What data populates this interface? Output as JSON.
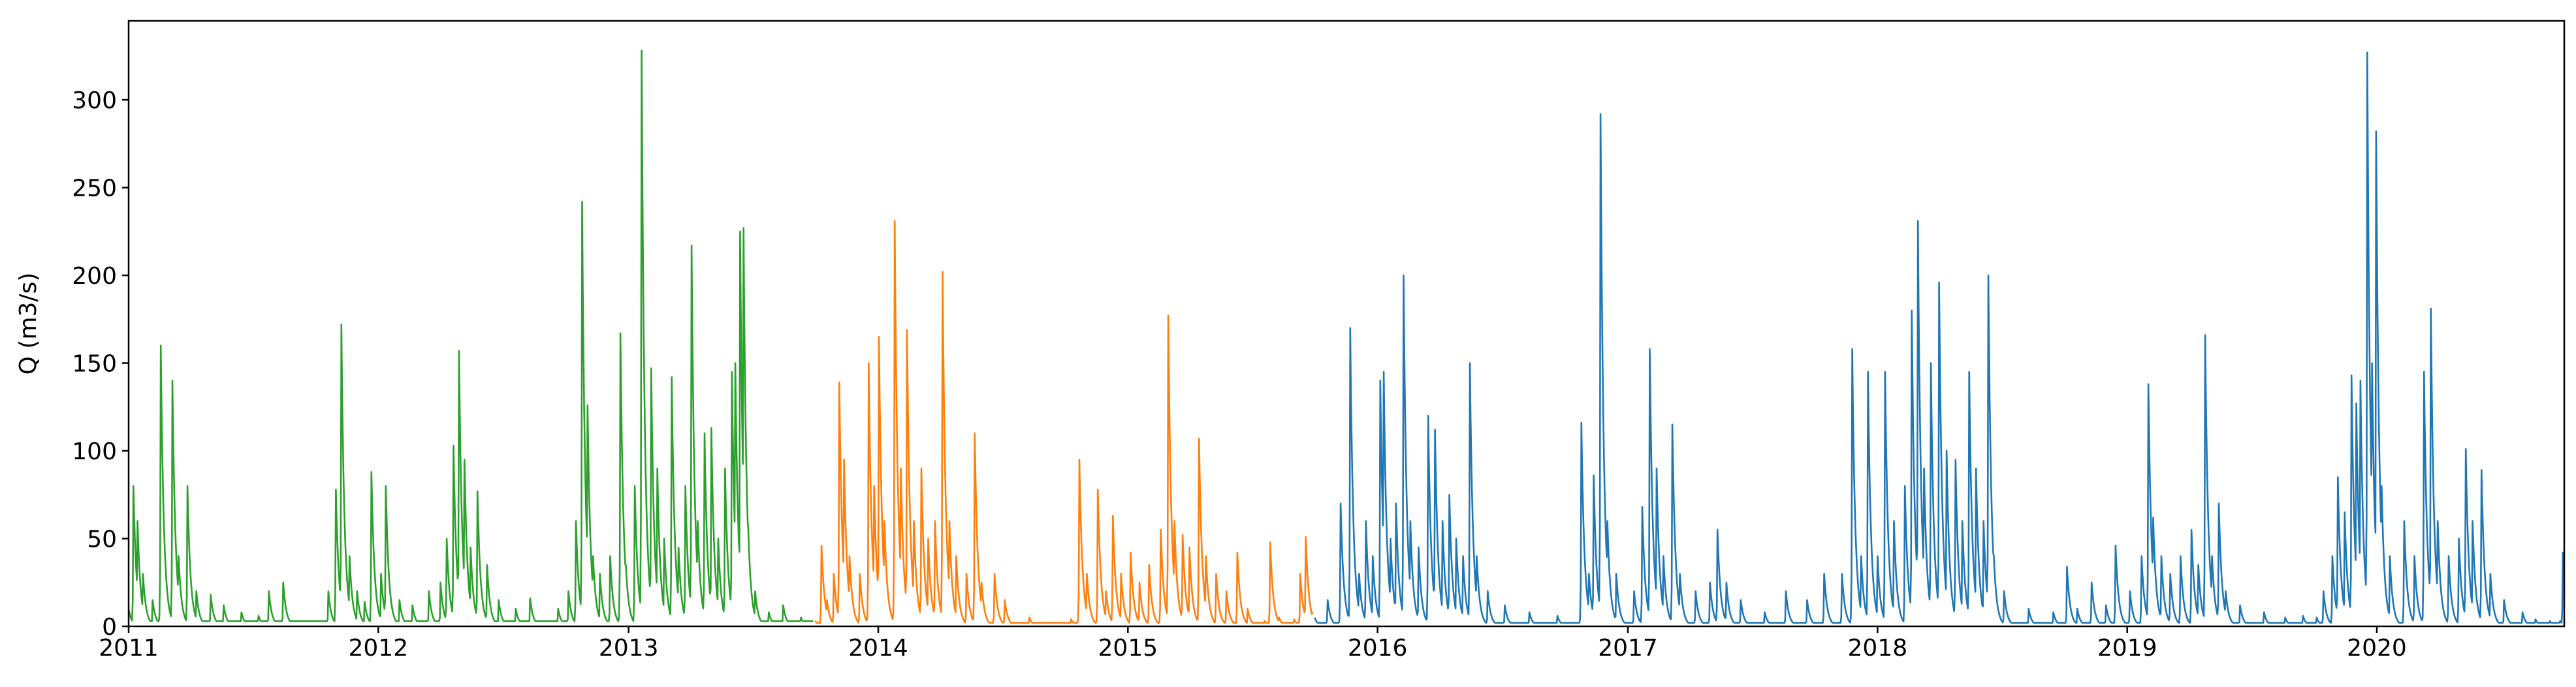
{
  "chart_data": {
    "type": "line",
    "title": "",
    "xlabel": "",
    "ylabel": "Q (m3/s)",
    "xlim": [
      "2011-01-01",
      "2020-10-01"
    ],
    "ylim": [
      0,
      345
    ],
    "x_ticks": [
      "2011",
      "2012",
      "2013",
      "2014",
      "2015",
      "2016",
      "2017",
      "2018",
      "2019",
      "2020"
    ],
    "y_ticks": [
      0,
      50,
      100,
      150,
      200,
      250,
      300
    ],
    "grid": false,
    "legend": "none",
    "series": [
      {
        "color": "#2ca02c",
        "baseflow": 3,
        "points": [
          [
            "2011-01-01",
            10
          ],
          [
            "2011-01-08",
            80
          ],
          [
            "2011-01-14",
            60
          ],
          [
            "2011-01-22",
            30
          ],
          [
            "2011-02-05",
            15
          ],
          [
            "2011-02-17",
            160
          ],
          [
            "2011-02-25",
            25
          ],
          [
            "2011-03-06",
            140
          ],
          [
            "2011-03-15",
            40
          ],
          [
            "2011-03-28",
            80
          ],
          [
            "2011-04-10",
            20
          ],
          [
            "2011-05-01",
            18
          ],
          [
            "2011-05-20",
            12
          ],
          [
            "2011-06-15",
            8
          ],
          [
            "2011-07-10",
            6
          ],
          [
            "2011-07-25",
            20
          ],
          [
            "2011-08-15",
            25
          ],
          [
            "2011-10-20",
            20
          ],
          [
            "2011-10-31",
            78
          ],
          [
            "2011-11-08",
            172
          ],
          [
            "2011-11-20",
            40
          ],
          [
            "2011-12-01",
            20
          ],
          [
            "2011-12-12",
            14
          ],
          [
            "2011-12-22",
            88
          ],
          [
            "2012-01-05",
            30
          ],
          [
            "2012-01-12",
            80
          ],
          [
            "2012-02-01",
            15
          ],
          [
            "2012-02-20",
            12
          ],
          [
            "2012-03-15",
            20
          ],
          [
            "2012-04-01",
            25
          ],
          [
            "2012-04-10",
            50
          ],
          [
            "2012-04-20",
            103
          ],
          [
            "2012-04-28",
            157
          ],
          [
            "2012-05-06",
            95
          ],
          [
            "2012-05-15",
            45
          ],
          [
            "2012-05-25",
            77
          ],
          [
            "2012-06-08",
            35
          ],
          [
            "2012-06-25",
            15
          ],
          [
            "2012-07-20",
            10
          ],
          [
            "2012-08-10",
            16
          ],
          [
            "2012-09-20",
            10
          ],
          [
            "2012-10-05",
            20
          ],
          [
            "2012-10-16",
            60
          ],
          [
            "2012-10-25",
            242
          ],
          [
            "2012-11-02",
            126
          ],
          [
            "2012-11-10",
            40
          ],
          [
            "2012-11-20",
            30
          ],
          [
            "2012-12-05",
            40
          ],
          [
            "2012-12-20",
            167
          ],
          [
            "2012-12-28",
            35
          ],
          [
            "2013-01-10",
            80
          ],
          [
            "2013-01-20",
            328
          ],
          [
            "2013-01-25",
            80
          ],
          [
            "2013-02-03",
            147
          ],
          [
            "2013-02-12",
            90
          ],
          [
            "2013-02-22",
            50
          ],
          [
            "2013-03-05",
            142
          ],
          [
            "2013-03-15",
            45
          ],
          [
            "2013-03-25",
            80
          ],
          [
            "2013-04-03",
            217
          ],
          [
            "2013-04-12",
            60
          ],
          [
            "2013-04-22",
            110
          ],
          [
            "2013-05-02",
            113
          ],
          [
            "2013-05-12",
            50
          ],
          [
            "2013-05-22",
            90
          ],
          [
            "2013-06-01",
            145
          ],
          [
            "2013-06-06",
            150
          ],
          [
            "2013-06-13",
            225
          ],
          [
            "2013-06-18",
            227
          ],
          [
            "2013-06-25",
            55
          ],
          [
            "2013-07-05",
            20
          ],
          [
            "2013-07-25",
            8
          ],
          [
            "2013-08-15",
            12
          ],
          [
            "2013-09-10",
            5
          ],
          [
            "2013-09-28",
            3
          ]
        ]
      },
      {
        "color": "#ff7f0e",
        "baseflow": 2,
        "points": [
          [
            "2013-10-01",
            3
          ],
          [
            "2013-10-10",
            46
          ],
          [
            "2013-10-18",
            15
          ],
          [
            "2013-10-28",
            30
          ],
          [
            "2013-11-05",
            139
          ],
          [
            "2013-11-12",
            95
          ],
          [
            "2013-11-20",
            40
          ],
          [
            "2013-12-05",
            30
          ],
          [
            "2013-12-18",
            150
          ],
          [
            "2013-12-26",
            80
          ],
          [
            "2014-01-02",
            165
          ],
          [
            "2014-01-10",
            60
          ],
          [
            "2014-01-25",
            231
          ],
          [
            "2014-02-03",
            90
          ],
          [
            "2014-02-12",
            169
          ],
          [
            "2014-02-22",
            60
          ],
          [
            "2014-03-05",
            90
          ],
          [
            "2014-03-15",
            50
          ],
          [
            "2014-03-25",
            60
          ],
          [
            "2014-04-05",
            202
          ],
          [
            "2014-04-15",
            60
          ],
          [
            "2014-04-25",
            40
          ],
          [
            "2014-05-10",
            30
          ],
          [
            "2014-05-22",
            110
          ],
          [
            "2014-06-01",
            25
          ],
          [
            "2014-06-20",
            30
          ],
          [
            "2014-07-05",
            15
          ],
          [
            "2014-08-10",
            5
          ],
          [
            "2014-10-10",
            4
          ],
          [
            "2014-10-22",
            95
          ],
          [
            "2014-11-02",
            30
          ],
          [
            "2014-11-18",
            78
          ],
          [
            "2014-11-30",
            20
          ],
          [
            "2014-12-10",
            63
          ],
          [
            "2014-12-22",
            30
          ],
          [
            "2015-01-05",
            42
          ],
          [
            "2015-01-18",
            25
          ],
          [
            "2015-02-01",
            35
          ],
          [
            "2015-02-18",
            55
          ],
          [
            "2015-03-01",
            177
          ],
          [
            "2015-03-10",
            60
          ],
          [
            "2015-03-22",
            52
          ],
          [
            "2015-04-01",
            45
          ],
          [
            "2015-04-15",
            107
          ],
          [
            "2015-04-25",
            40
          ],
          [
            "2015-05-10",
            30
          ],
          [
            "2015-05-25",
            20
          ],
          [
            "2015-06-10",
            42
          ],
          [
            "2015-06-25",
            10
          ],
          [
            "2015-07-20",
            3
          ],
          [
            "2015-07-28",
            48
          ],
          [
            "2015-08-10",
            5
          ],
          [
            "2015-09-01",
            4
          ],
          [
            "2015-09-10",
            30
          ],
          [
            "2015-09-18",
            51
          ],
          [
            "2015-09-28",
            8
          ]
        ]
      },
      {
        "color": "#1f77b4",
        "baseflow": 2,
        "points": [
          [
            "2015-10-01",
            5
          ],
          [
            "2015-10-20",
            15
          ],
          [
            "2015-11-08",
            70
          ],
          [
            "2015-11-22",
            170
          ],
          [
            "2015-12-05",
            30
          ],
          [
            "2015-12-15",
            60
          ],
          [
            "2015-12-25",
            40
          ],
          [
            "2016-01-05",
            140
          ],
          [
            "2016-01-10",
            145
          ],
          [
            "2016-01-20",
            50
          ],
          [
            "2016-01-28",
            70
          ],
          [
            "2016-02-08",
            200
          ],
          [
            "2016-02-18",
            60
          ],
          [
            "2016-03-01",
            45
          ],
          [
            "2016-03-15",
            120
          ],
          [
            "2016-03-25",
            112
          ],
          [
            "2016-04-05",
            60
          ],
          [
            "2016-04-15",
            75
          ],
          [
            "2016-04-25",
            50
          ],
          [
            "2016-05-05",
            40
          ],
          [
            "2016-05-15",
            150
          ],
          [
            "2016-05-25",
            40
          ],
          [
            "2016-06-10",
            20
          ],
          [
            "2016-07-05",
            12
          ],
          [
            "2016-08-10",
            8
          ],
          [
            "2016-09-20",
            6
          ],
          [
            "2016-10-25",
            116
          ],
          [
            "2016-11-05",
            30
          ],
          [
            "2016-11-12",
            86
          ],
          [
            "2016-11-22",
            292
          ],
          [
            "2016-12-02",
            60
          ],
          [
            "2016-12-15",
            30
          ],
          [
            "2017-01-10",
            20
          ],
          [
            "2017-01-22",
            68
          ],
          [
            "2017-02-02",
            158
          ],
          [
            "2017-02-12",
            90
          ],
          [
            "2017-02-22",
            40
          ],
          [
            "2017-03-07",
            115
          ],
          [
            "2017-03-18",
            30
          ],
          [
            "2017-04-10",
            20
          ],
          [
            "2017-05-01",
            25
          ],
          [
            "2017-05-12",
            55
          ],
          [
            "2017-05-25",
            25
          ],
          [
            "2017-06-15",
            15
          ],
          [
            "2017-07-20",
            8
          ],
          [
            "2017-08-20",
            20
          ],
          [
            "2017-09-20",
            15
          ],
          [
            "2017-10-15",
            30
          ],
          [
            "2017-11-10",
            30
          ],
          [
            "2017-11-25",
            158
          ],
          [
            "2017-12-08",
            40
          ],
          [
            "2017-12-18",
            145
          ],
          [
            "2018-01-01",
            40
          ],
          [
            "2018-01-12",
            145
          ],
          [
            "2018-01-25",
            60
          ],
          [
            "2018-02-10",
            80
          ],
          [
            "2018-02-20",
            180
          ],
          [
            "2018-03-01",
            231
          ],
          [
            "2018-03-10",
            90
          ],
          [
            "2018-03-20",
            150
          ],
          [
            "2018-04-01",
            196
          ],
          [
            "2018-04-12",
            100
          ],
          [
            "2018-04-25",
            95
          ],
          [
            "2018-05-05",
            60
          ],
          [
            "2018-05-15",
            145
          ],
          [
            "2018-05-25",
            90
          ],
          [
            "2018-06-05",
            60
          ],
          [
            "2018-06-12",
            200
          ],
          [
            "2018-06-20",
            40
          ],
          [
            "2018-07-05",
            20
          ],
          [
            "2018-08-10",
            10
          ],
          [
            "2018-09-15",
            8
          ],
          [
            "2018-10-05",
            34
          ],
          [
            "2018-10-20",
            10
          ],
          [
            "2018-11-10",
            25
          ],
          [
            "2018-12-01",
            12
          ],
          [
            "2018-12-15",
            46
          ],
          [
            "2019-01-05",
            20
          ],
          [
            "2019-01-22",
            40
          ],
          [
            "2019-02-01",
            138
          ],
          [
            "2019-02-08",
            62
          ],
          [
            "2019-02-20",
            40
          ],
          [
            "2019-03-05",
            30
          ],
          [
            "2019-03-20",
            40
          ],
          [
            "2019-04-05",
            55
          ],
          [
            "2019-04-15",
            35
          ],
          [
            "2019-04-25",
            166
          ],
          [
            "2019-05-05",
            40
          ],
          [
            "2019-05-15",
            70
          ],
          [
            "2019-05-25",
            20
          ],
          [
            "2019-06-15",
            12
          ],
          [
            "2019-07-20",
            8
          ],
          [
            "2019-08-20",
            5
          ],
          [
            "2019-09-15",
            6
          ],
          [
            "2019-10-05",
            5
          ],
          [
            "2019-10-15",
            20
          ],
          [
            "2019-10-28",
            40
          ],
          [
            "2019-11-05",
            85
          ],
          [
            "2019-11-15",
            65
          ],
          [
            "2019-11-25",
            143
          ],
          [
            "2019-12-02",
            127
          ],
          [
            "2019-12-08",
            140
          ],
          [
            "2019-12-18",
            327
          ],
          [
            "2019-12-25",
            150
          ],
          [
            "2019-12-31",
            282
          ],
          [
            "2020-01-08",
            80
          ],
          [
            "2020-01-20",
            40
          ],
          [
            "2020-02-10",
            60
          ],
          [
            "2020-02-25",
            40
          ],
          [
            "2020-03-10",
            145
          ],
          [
            "2020-03-20",
            181
          ],
          [
            "2020-03-30",
            60
          ],
          [
            "2020-04-15",
            40
          ],
          [
            "2020-04-30",
            50
          ],
          [
            "2020-05-10",
            101
          ],
          [
            "2020-05-20",
            60
          ],
          [
            "2020-06-02",
            89
          ],
          [
            "2020-06-15",
            30
          ],
          [
            "2020-07-05",
            15
          ],
          [
            "2020-08-01",
            8
          ],
          [
            "2020-08-20",
            4
          ],
          [
            "2020-09-10",
            3
          ],
          [
            "2020-09-25",
            3
          ],
          [
            "2020-09-29",
            42
          ],
          [
            "2020-10-01",
            40
          ]
        ]
      }
    ]
  }
}
